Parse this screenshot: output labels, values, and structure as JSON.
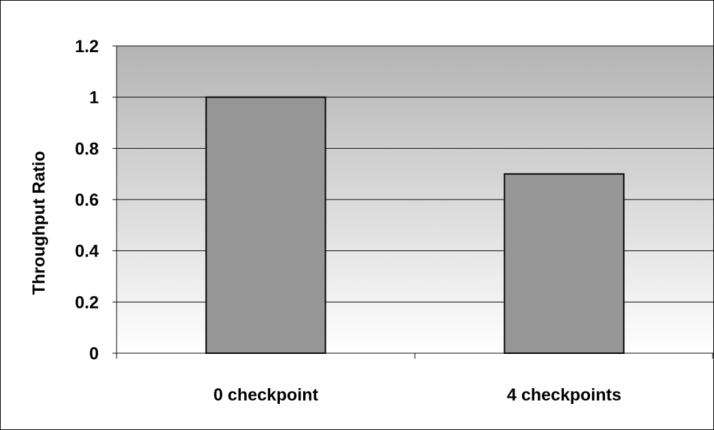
{
  "chart_data": {
    "type": "bar",
    "title": "",
    "xlabel": "",
    "ylabel": "Throughput Ratio",
    "categories": [
      "0 checkpoint",
      "4 checkpoints"
    ],
    "values": [
      1.0,
      0.7
    ],
    "ylim": [
      0,
      1.2
    ],
    "yticks": [
      "0",
      "0.2",
      "0.4",
      "0.6",
      "0.8",
      "1",
      "1.2"
    ],
    "grid": true,
    "legend": "none",
    "colors": {
      "bar_fill": "#969696",
      "bar_stroke": "#000000",
      "plot_bg_top": "#b4b4b4",
      "plot_bg_bottom": "#ffffff",
      "gridline": "#000000"
    }
  }
}
